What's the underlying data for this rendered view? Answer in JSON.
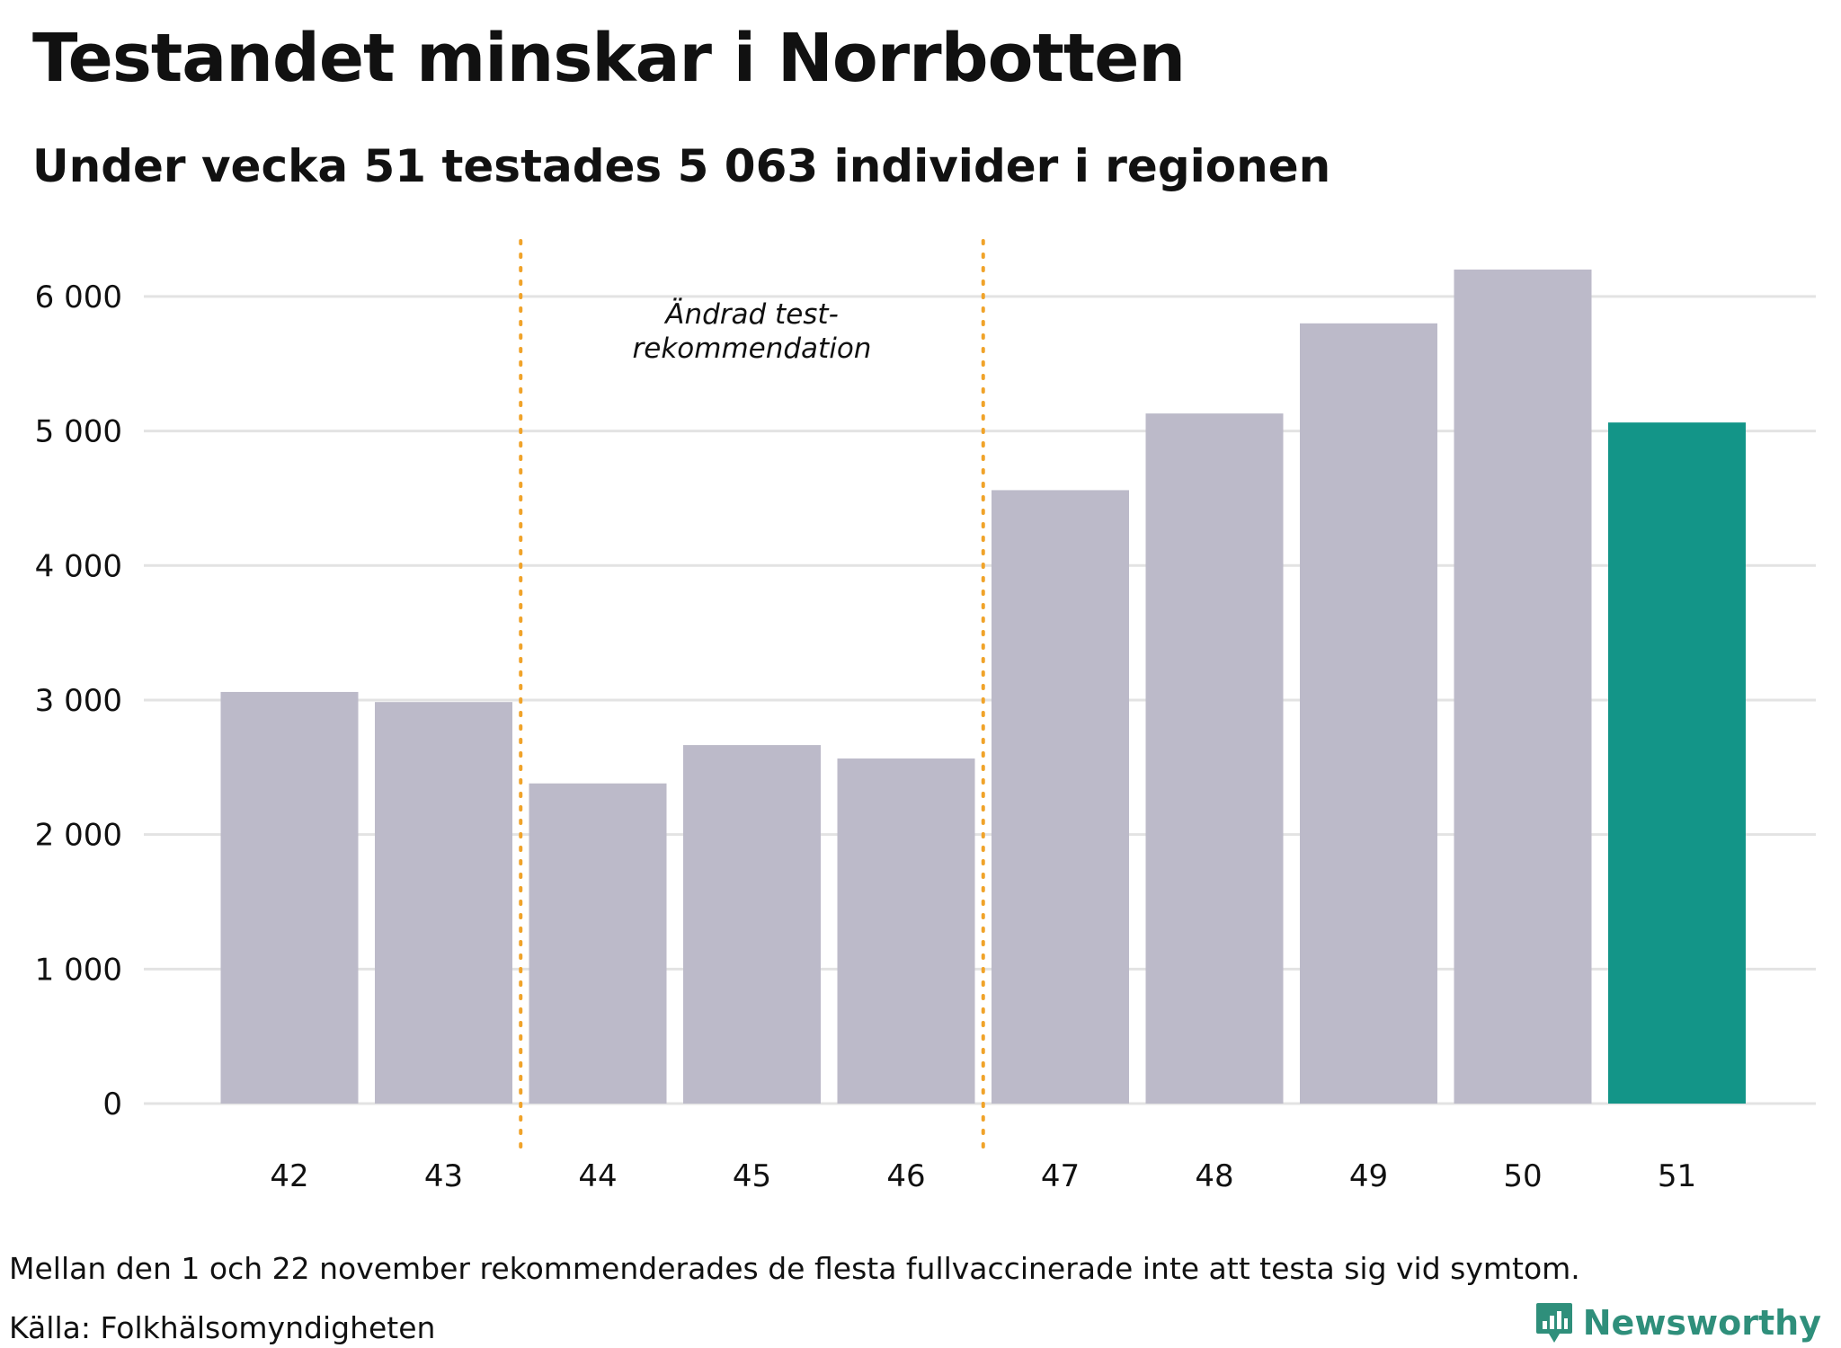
{
  "chart_data": {
    "type": "bar",
    "title": "Testandet minskar i Norrbotten",
    "subtitle": "Under vecka 51 testades 5 063 individer i regionen",
    "xlabel": "",
    "ylabel": "",
    "categories": [
      "42",
      "43",
      "44",
      "45",
      "46",
      "47",
      "48",
      "49",
      "50",
      "51"
    ],
    "values": [
      3060,
      2985,
      2380,
      2665,
      2565,
      4560,
      5130,
      5800,
      6200,
      5063
    ],
    "highlight_index": 9,
    "ylim": [
      0,
      6400
    ],
    "yticks": [
      0,
      1000,
      2000,
      3000,
      4000,
      5000,
      6000
    ],
    "ytick_labels": [
      "0",
      "1 000",
      "2 000",
      "3 000",
      "4 000",
      "5 000",
      "6 000"
    ],
    "grid": true,
    "reference_lines": [
      {
        "between": [
          "43",
          "44"
        ],
        "style": "dotted"
      },
      {
        "between": [
          "46",
          "47"
        ],
        "style": "dotted"
      }
    ],
    "annotation": {
      "lines": [
        "Ändrad test-",
        "rekommendation"
      ],
      "between": [
        "44",
        "46"
      ]
    },
    "colors": {
      "bar": "#bcbac9",
      "highlight": "#139588",
      "grid": "#e3e3e3",
      "reference_line": "#f0a32a",
      "brand": "#2f8f7b"
    }
  },
  "footer": {
    "note": "Mellan den 1 och 22 november rekommenderades de flesta fullvaccinerade inte att testa sig vid symtom.",
    "source": "Källa: Folkhälsomyndigheten"
  },
  "brand": {
    "name": "Newsworthy",
    "icon": "bar-chart-badge-icon"
  }
}
